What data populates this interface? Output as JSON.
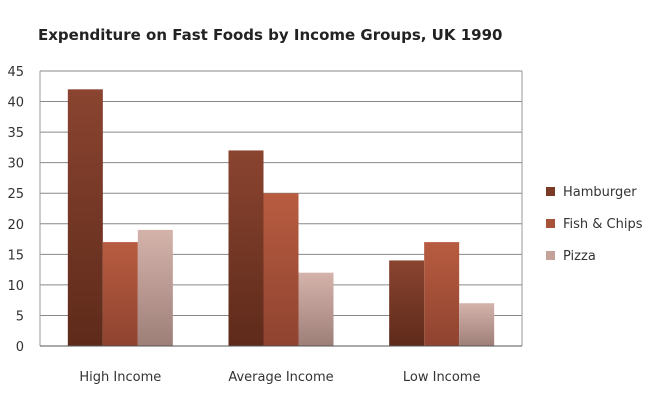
{
  "chart_data": {
    "type": "bar",
    "title": "Expenditure on Fast Foods by Income Groups, UK 1990",
    "xlabel": "",
    "ylabel": "",
    "categories": [
      "High Income",
      "Average Income",
      "Low Income"
    ],
    "series": [
      {
        "name": "Hamburger",
        "values": [
          42,
          32,
          14
        ],
        "color": "#7b3a26"
      },
      {
        "name": "Fish & Chips",
        "values": [
          17,
          25,
          17
        ],
        "color": "#a9523a"
      },
      {
        "name": "Pizza",
        "values": [
          19,
          12,
          7
        ],
        "color": "#c4a29a"
      }
    ],
    "ylim": [
      0,
      45
    ],
    "yticks": [
      0,
      5,
      10,
      15,
      20,
      25,
      30,
      35,
      40,
      45
    ],
    "grid": true,
    "legend_position": "right"
  }
}
